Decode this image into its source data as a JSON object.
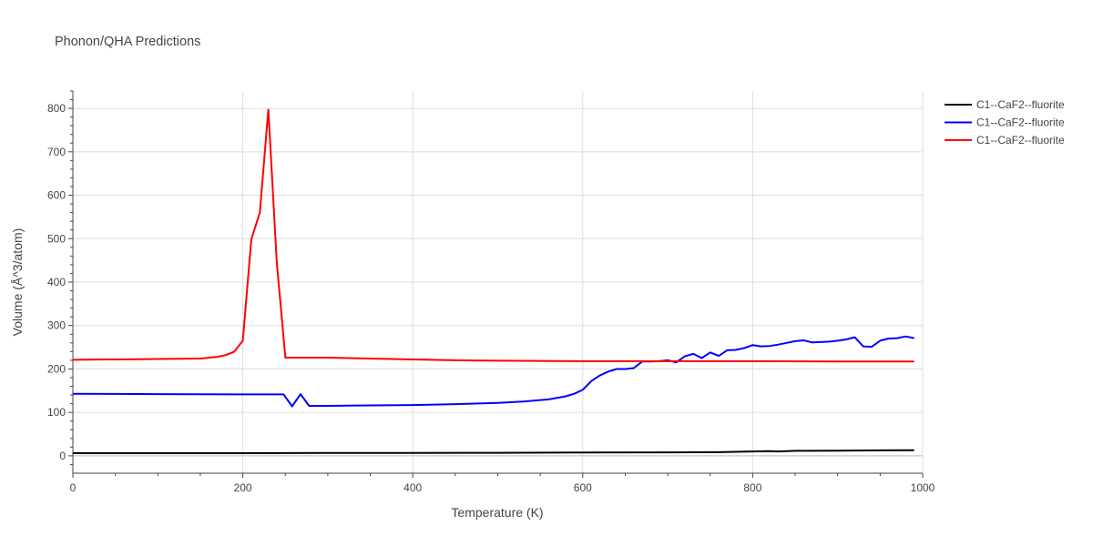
{
  "chart_data": {
    "type": "line",
    "title": "Phonon/QHA Predictions",
    "xlabel": "Temperature (K)",
    "ylabel": "Volume (Å^3/atom)",
    "xlim": [
      0,
      1000
    ],
    "ylim": [
      -40,
      840
    ],
    "x_ticks": [
      0,
      200,
      400,
      600,
      800,
      1000
    ],
    "y_ticks": [
      0,
      100,
      200,
      300,
      400,
      500,
      600,
      700,
      800
    ],
    "grid": true,
    "legend_position": "top-right",
    "series": [
      {
        "name": "C1--CaF2--fluorite",
        "color": "#000000",
        "points": [
          [
            0,
            6
          ],
          [
            100,
            6
          ],
          [
            200,
            6
          ],
          [
            300,
            6.5
          ],
          [
            400,
            6.8
          ],
          [
            500,
            7
          ],
          [
            600,
            7.5
          ],
          [
            700,
            8
          ],
          [
            760,
            8.5
          ],
          [
            800,
            10
          ],
          [
            820,
            11
          ],
          [
            830,
            10
          ],
          [
            850,
            11.5
          ],
          [
            900,
            12
          ],
          [
            950,
            12.5
          ],
          [
            990,
            13
          ]
        ]
      },
      {
        "name": "C1--CaF2--fluorite",
        "color": "#0000ff",
        "points": [
          [
            0,
            143
          ],
          [
            100,
            142
          ],
          [
            200,
            141.5
          ],
          [
            248,
            141.5
          ],
          [
            258,
            114
          ],
          [
            268,
            142
          ],
          [
            278,
            115
          ],
          [
            300,
            115
          ],
          [
            350,
            116
          ],
          [
            400,
            117
          ],
          [
            450,
            119
          ],
          [
            500,
            122
          ],
          [
            530,
            125
          ],
          [
            560,
            130
          ],
          [
            580,
            137
          ],
          [
            590,
            143
          ],
          [
            600,
            152
          ],
          [
            610,
            172
          ],
          [
            620,
            185
          ],
          [
            630,
            194
          ],
          [
            640,
            200
          ],
          [
            650,
            200
          ],
          [
            660,
            202
          ],
          [
            670,
            217
          ],
          [
            680,
            217
          ],
          [
            690,
            218
          ],
          [
            700,
            220
          ],
          [
            710,
            215
          ],
          [
            720,
            229
          ],
          [
            730,
            235
          ],
          [
            740,
            225
          ],
          [
            750,
            238
          ],
          [
            760,
            230
          ],
          [
            770,
            243
          ],
          [
            780,
            244
          ],
          [
            790,
            248
          ],
          [
            800,
            255
          ],
          [
            810,
            252
          ],
          [
            820,
            253
          ],
          [
            830,
            256
          ],
          [
            840,
            260
          ],
          [
            850,
            264
          ],
          [
            860,
            266
          ],
          [
            870,
            261
          ],
          [
            880,
            262
          ],
          [
            890,
            263
          ],
          [
            900,
            265
          ],
          [
            910,
            268
          ],
          [
            920,
            273
          ],
          [
            930,
            252
          ],
          [
            940,
            251
          ],
          [
            950,
            265
          ],
          [
            960,
            270
          ],
          [
            970,
            271
          ],
          [
            980,
            275
          ],
          [
            990,
            271
          ]
        ]
      },
      {
        "name": "C1--CaF2--fluorite",
        "color": "#ff0000",
        "points": [
          [
            0,
            221
          ],
          [
            100,
            223
          ],
          [
            150,
            224
          ],
          [
            170,
            228
          ],
          [
            180,
            232
          ],
          [
            190,
            240
          ],
          [
            200,
            265
          ],
          [
            210,
            498
          ],
          [
            220,
            560
          ],
          [
            230,
            797
          ],
          [
            240,
            445
          ],
          [
            250,
            226
          ],
          [
            300,
            226
          ],
          [
            400,
            222
          ],
          [
            450,
            220
          ],
          [
            500,
            219
          ],
          [
            600,
            218
          ],
          [
            700,
            218
          ],
          [
            800,
            218
          ],
          [
            900,
            217
          ],
          [
            990,
            217
          ]
        ]
      }
    ]
  }
}
